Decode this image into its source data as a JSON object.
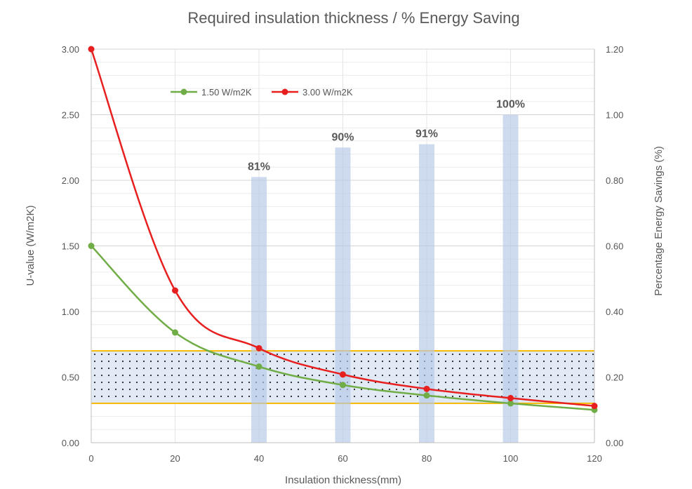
{
  "chart_data": {
    "type": "line",
    "title": "Required insulation thickness / % Energy Saving",
    "xlabel": "Insulation thickness(mm)",
    "ylabel": "U-value (W/m2K)",
    "y2label": "Percentage Energy Savings (%)",
    "xlim": [
      0,
      120
    ],
    "ylim": [
      0,
      3.0
    ],
    "y2lim": [
      0,
      1.2
    ],
    "x_ticks": [
      "0",
      "20",
      "40",
      "60",
      "80",
      "100",
      "120"
    ],
    "x_tick_values": [
      0,
      20,
      40,
      60,
      80,
      100,
      120
    ],
    "y_ticks": [
      "0.00",
      "0.50",
      "1.00",
      "1.50",
      "2.00",
      "2.50",
      "3.00"
    ],
    "y_tick_values": [
      0,
      0.5,
      1.0,
      1.5,
      2.0,
      2.5,
      3.0
    ],
    "y2_ticks": [
      "0.00",
      "0.20",
      "0.40",
      "0.60",
      "0.80",
      "1.00",
      "1.20"
    ],
    "y2_tick_values": [
      0,
      0.2,
      0.4,
      0.6,
      0.8,
      1.0,
      1.2
    ],
    "series": [
      {
        "name": "1.50 W/m2K",
        "color": "#70ad47",
        "x": [
          0,
          20,
          40,
          60,
          80,
          100,
          120
        ],
        "values": [
          1.5,
          0.84,
          0.58,
          0.44,
          0.36,
          0.3,
          0.25
        ]
      },
      {
        "name": "3.00 W/m2K",
        "color": "#e81f1f",
        "x": [
          0,
          20,
          40,
          60,
          80,
          100,
          120
        ],
        "values": [
          3.0,
          1.16,
          0.72,
          0.52,
          0.41,
          0.34,
          0.28
        ]
      }
    ],
    "bars": {
      "axis": "secondary",
      "color": "#b4c7e7",
      "x": [
        40,
        60,
        80,
        100
      ],
      "values": [
        0.81,
        0.9,
        0.91,
        1.0
      ],
      "labels": [
        "81%",
        "90%",
        "91%",
        "100%"
      ]
    },
    "target_band": {
      "low": 0.3,
      "high": 0.7,
      "line_color": "#f5b800",
      "fill_color": "#dde6f3"
    },
    "legend_position": "top-left"
  }
}
